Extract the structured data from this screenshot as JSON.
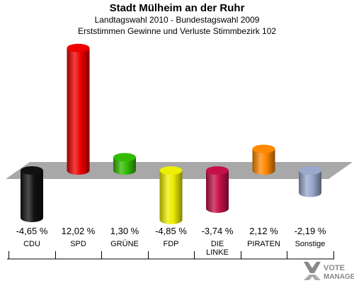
{
  "chart_data": {
    "type": "bar",
    "title": "Stadt Mülheim an der Ruhr",
    "subtitle": "Landtagswahl 2010 - Bundestagswahl 2009",
    "subtitle2": "Erststimmen Gewinne und Verluste Stimmbezirk 102",
    "categories": [
      "CDU",
      "SPD",
      "GRÜNE",
      "FDP",
      "DIE LINKE",
      "PIRATEN",
      "Sonstige"
    ],
    "category_lines": [
      [
        "CDU"
      ],
      [
        "SPD"
      ],
      [
        "GRÜNE"
      ],
      [
        "FDP"
      ],
      [
        "DIE",
        "LINKE"
      ],
      [
        "PIRATEN"
      ],
      [
        "Sonstige"
      ]
    ],
    "values": [
      -4.65,
      12.02,
      1.3,
      -4.85,
      -3.74,
      2.12,
      -2.19
    ],
    "value_labels": [
      "-4,65 %",
      "12,02 %",
      "1,30 %",
      "-4,85 %",
      "-3,74 %",
      "2,12 %",
      "-2,19 %"
    ],
    "colors": [
      "#111111",
      "#ee0000",
      "#33bb00",
      "#eeee00",
      "#c41048",
      "#ff8800",
      "#99a8cc"
    ],
    "ylim": [
      -6,
      13
    ],
    "grid": false,
    "legend": "none"
  },
  "watermark": {
    "line1": "VOTE",
    "line2": "MANAGER"
  }
}
